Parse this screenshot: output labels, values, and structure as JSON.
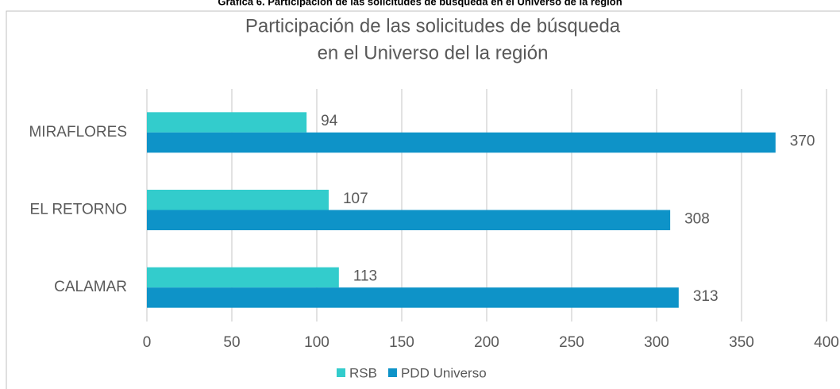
{
  "chart_data": {
    "type": "hbar",
    "caption": "Gráfica 6. Participación de las solicitudes de búsqueda en el Universo de la región",
    "title": [
      "Participación  de las solicitudes  de búsqueda",
      "en el Universo del  la región"
    ],
    "categories": [
      "MIRAFLORES",
      "EL RETORNO",
      "CALAMAR"
    ],
    "series": [
      {
        "name": "RSB",
        "color": "#33cccc",
        "values": [
          94,
          107,
          113
        ]
      },
      {
        "name": "PDD Universo",
        "color": "#0e93c8",
        "values": [
          370,
          308,
          313
        ]
      }
    ],
    "xlim": [
      0,
      400
    ],
    "xticks": [
      0,
      50,
      100,
      150,
      200,
      250,
      300,
      350,
      400
    ],
    "grid": true,
    "legend": "bottom"
  }
}
